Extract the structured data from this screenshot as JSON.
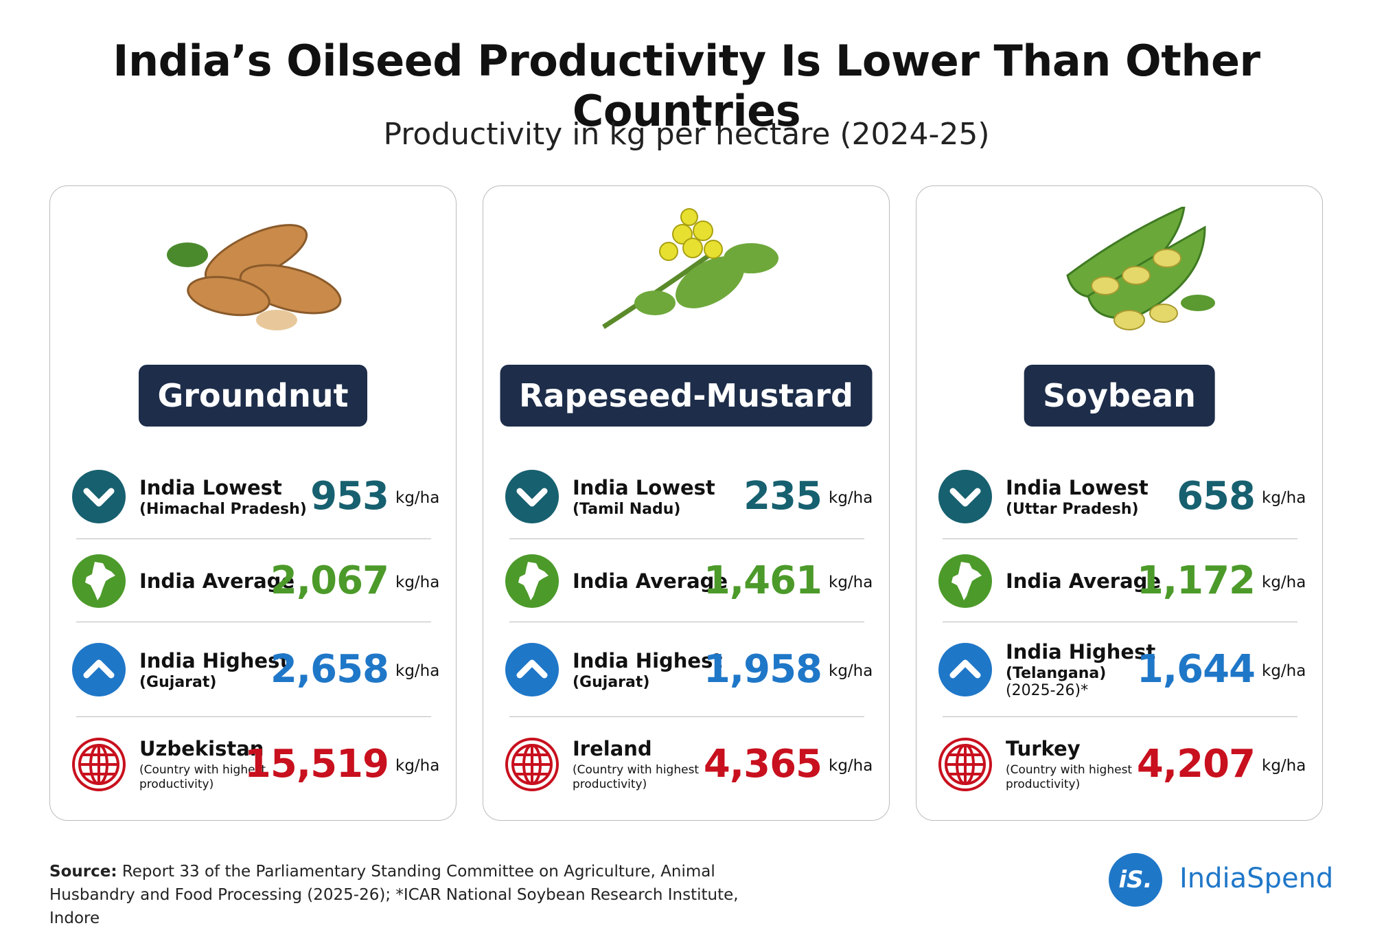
{
  "title": "India’s Oilseed Productivity Is Lower Than Other Countries",
  "subtitle": "Productivity in kg per hectare (2024-25)",
  "cards": [
    {
      "crop": "Groundnut",
      "rows": [
        {
          "label": "India Lowest",
          "sublabel": "(Himachal Pradesh)",
          "value": "953",
          "unit": "kg/ha"
        },
        {
          "label": "India Average",
          "value": "2,067",
          "unit": "kg/ha"
        },
        {
          "label": "India Highest",
          "sublabel": "(Gujarat)",
          "value": "2,658",
          "unit": "kg/ha"
        },
        {
          "label": "Uzbekistan",
          "note": "(Country with highest productivity)",
          "value": "15,519",
          "unit": "kg/ha"
        }
      ]
    },
    {
      "crop": "Rapeseed-Mustard",
      "rows": [
        {
          "label": "India Lowest",
          "sublabel": "(Tamil Nadu)",
          "value": "235",
          "unit": "kg/ha"
        },
        {
          "label": "India Average",
          "value": "1,461",
          "unit": "kg/ha"
        },
        {
          "label": "India Highest",
          "sublabel": "(Gujarat)",
          "value": "1,958",
          "unit": "kg/ha"
        },
        {
          "label": "Ireland",
          "note": "(Country with highest productivity)",
          "value": "4,365",
          "unit": "kg/ha"
        }
      ]
    },
    {
      "crop": "Soybean",
      "rows": [
        {
          "label": "India Lowest",
          "sublabel": "(Uttar Pradesh)",
          "value": "658",
          "unit": "kg/ha"
        },
        {
          "label": "India Average",
          "value": "1,172",
          "unit": "kg/ha"
        },
        {
          "label": "India Highest",
          "sublabel": "(Telangana)",
          "extra": "(2025-26)*",
          "value": "1,644",
          "unit": "kg/ha"
        },
        {
          "label": "Turkey",
          "note": "(Country with highest productivity)",
          "value": "4,207",
          "unit": "kg/ha"
        }
      ]
    }
  ],
  "source": {
    "label": "Source:",
    "text": "Report 33 of the Parliamentary Standing Committee on Agriculture, Animal Husbandry and Food Processing (2025-26); *ICAR National Soybean Research Institute, Indore"
  },
  "logo": {
    "mark": "iS.",
    "name": "IndiaSpend"
  }
}
